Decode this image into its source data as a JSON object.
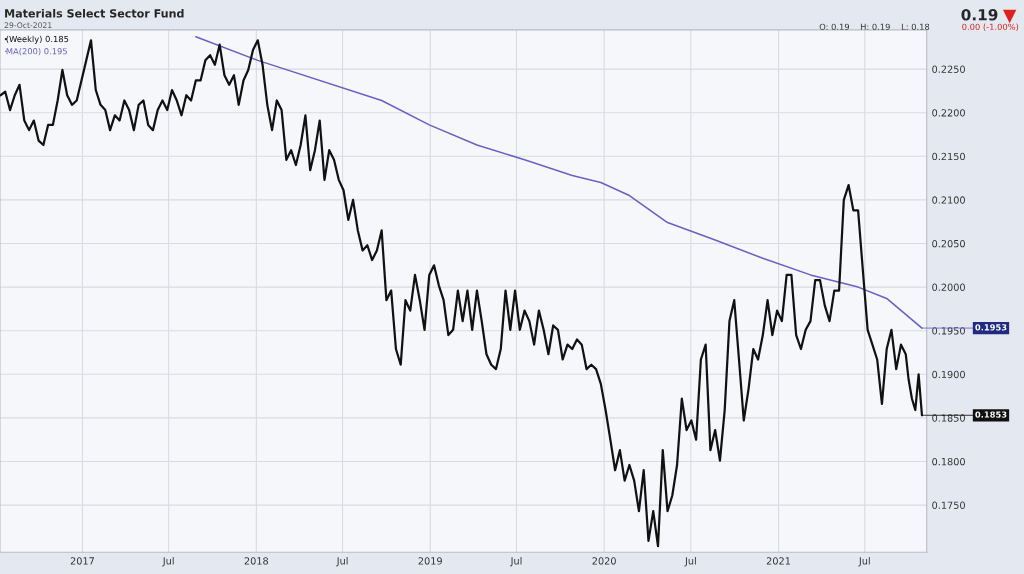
{
  "chart_data": {
    "type": "line",
    "title": "Materials Select Sector Fund",
    "annotations": [
      "29-Oct-2021",
      "0.19",
      "O: 0.19",
      "H: 0.19",
      "L: 0.18",
      "0.00 (-1.00%)",
      {
        "text": "0.1953",
        "x": "2021-10-29",
        "y": 0.1953
      },
      {
        "text": "0.1853",
        "x": "2021-10-29",
        "y": 0.1853
      }
    ],
    "series": [
      {
        "name": "(Weekly) 0.185",
        "color": "#111111",
        "x": [
          "2016-07-13",
          "2016-07-23",
          "2016-08-02",
          "2016-08-12",
          "2016-08-22",
          "2016-09-01",
          "2016-09-11",
          "2016-09-21",
          "2016-10-01",
          "2016-10-11",
          "2016-10-21",
          "2016-10-31",
          "2016-11-10",
          "2016-11-20",
          "2016-11-30",
          "2016-12-10",
          "2016-12-20",
          "2016-12-30",
          "2017-01-09",
          "2017-01-19",
          "2017-01-29",
          "2017-02-08",
          "2017-02-18",
          "2017-02-28",
          "2017-03-10",
          "2017-03-20",
          "2017-03-30",
          "2017-04-09",
          "2017-04-19",
          "2017-04-29",
          "2017-05-09",
          "2017-05-19",
          "2017-05-29",
          "2017-06-08",
          "2017-06-18",
          "2017-06-28",
          "2017-07-08",
          "2017-07-18",
          "2017-07-28",
          "2017-08-07",
          "2017-08-17",
          "2017-08-27",
          "2017-09-06",
          "2017-09-16",
          "2017-09-26",
          "2017-10-06",
          "2017-10-16",
          "2017-10-26",
          "2017-11-05",
          "2017-11-15",
          "2017-11-25",
          "2017-12-05",
          "2017-12-15",
          "2017-12-25",
          "2018-01-04",
          "2018-01-14",
          "2018-01-24",
          "2018-02-03",
          "2018-02-13",
          "2018-02-23",
          "2018-03-05",
          "2018-03-15",
          "2018-03-25",
          "2018-04-04",
          "2018-04-14",
          "2018-04-24",
          "2018-05-04",
          "2018-05-14",
          "2018-05-24",
          "2018-06-03",
          "2018-06-13",
          "2018-06-23",
          "2018-07-03",
          "2018-07-13",
          "2018-07-23",
          "2018-08-02",
          "2018-08-12",
          "2018-08-22",
          "2018-09-01",
          "2018-09-11",
          "2018-09-21",
          "2018-10-01",
          "2018-10-11",
          "2018-10-21",
          "2018-10-31",
          "2018-11-10",
          "2018-11-20",
          "2018-11-30",
          "2018-12-10",
          "2018-12-20",
          "2018-12-30",
          "2019-01-09",
          "2019-01-19",
          "2019-01-29",
          "2019-02-08",
          "2019-02-18",
          "2019-02-28",
          "2019-03-10",
          "2019-03-20",
          "2019-03-30",
          "2019-04-09",
          "2019-04-19",
          "2019-04-29",
          "2019-05-09",
          "2019-05-19",
          "2019-05-29",
          "2019-06-08",
          "2019-06-18",
          "2019-06-28",
          "2019-07-08",
          "2019-07-18",
          "2019-07-28",
          "2019-08-07",
          "2019-08-17",
          "2019-08-27",
          "2019-09-06",
          "2019-09-16",
          "2019-09-26",
          "2019-10-06",
          "2019-10-16",
          "2019-10-26",
          "2019-11-05",
          "2019-11-15",
          "2019-11-25",
          "2019-12-05",
          "2019-12-15",
          "2019-12-25",
          "2020-01-04",
          "2020-01-14",
          "2020-01-24",
          "2020-02-03",
          "2020-02-13",
          "2020-02-23",
          "2020-03-04",
          "2020-03-14",
          "2020-03-24",
          "2020-04-03",
          "2020-04-13",
          "2020-04-23",
          "2020-05-03",
          "2020-05-13",
          "2020-05-23",
          "2020-06-02",
          "2020-06-12",
          "2020-06-22",
          "2020-07-02",
          "2020-07-12",
          "2020-07-22",
          "2020-08-01",
          "2020-08-11",
          "2020-08-21",
          "2020-08-31",
          "2020-09-10",
          "2020-09-20",
          "2020-09-30",
          "2020-10-10",
          "2020-10-20",
          "2020-10-30",
          "2020-11-09",
          "2020-11-19",
          "2020-11-29",
          "2020-12-09",
          "2020-12-19",
          "2020-12-29",
          "2021-01-08",
          "2021-01-18",
          "2021-01-28",
          "2021-02-07",
          "2021-02-17",
          "2021-02-27",
          "2021-03-09",
          "2021-03-19",
          "2021-03-29",
          "2021-04-08",
          "2021-04-18",
          "2021-04-28",
          "2021-05-08",
          "2021-05-18",
          "2021-05-28",
          "2021-06-07",
          "2021-06-17",
          "2021-06-27",
          "2021-07-07",
          "2021-07-17",
          "2021-07-27",
          "2021-08-06",
          "2021-08-16",
          "2021-08-26",
          "2021-09-05",
          "2021-09-15",
          "2021-09-25",
          "2021-10-01",
          "2021-10-08",
          "2021-10-15",
          "2021-10-22",
          "2021-10-29"
        ],
        "values": [
          0.222,
          0.2224,
          0.2203,
          0.222,
          0.2232,
          0.2191,
          0.218,
          0.2191,
          0.2168,
          0.2163,
          0.2186,
          0.2186,
          0.2214,
          0.2249,
          0.222,
          0.2209,
          0.2214,
          0.2237,
          0.226,
          0.2283,
          0.2226,
          0.2209,
          0.2203,
          0.218,
          0.2197,
          0.2191,
          0.2214,
          0.2203,
          0.218,
          0.2209,
          0.2214,
          0.2186,
          0.218,
          0.2203,
          0.2214,
          0.2203,
          0.2226,
          0.2214,
          0.2197,
          0.222,
          0.2214,
          0.2237,
          0.2237,
          0.226,
          0.2266,
          0.2255,
          0.2278,
          0.2243,
          0.2232,
          0.2243,
          0.2209,
          0.2237,
          0.2249,
          0.2272,
          0.2283,
          0.2255,
          0.2209,
          0.218,
          0.2214,
          0.2203,
          0.2146,
          0.2157,
          0.214,
          0.2163,
          0.2197,
          0.2134,
          0.2157,
          0.2191,
          0.2123,
          0.2157,
          0.2146,
          0.2123,
          0.2111,
          0.2077,
          0.21,
          0.2065,
          0.2042,
          0.2048,
          0.2031,
          0.2042,
          0.2065,
          0.1985,
          0.1996,
          0.1929,
          0.1911,
          0.1985,
          0.1973,
          0.2014,
          0.1985,
          0.1951,
          0.2014,
          0.2025,
          0.2002,
          0.1985,
          0.1945,
          0.1951,
          0.1996,
          0.1961,
          0.1996,
          0.1951,
          0.1996,
          0.1961,
          0.1923,
          0.1911,
          0.1906,
          0.1929,
          0.1996,
          0.1951,
          0.1996,
          0.1951,
          0.1973,
          0.1961,
          0.1934,
          0.1973,
          0.1951,
          0.1923,
          0.1956,
          0.1951,
          0.1917,
          0.1934,
          0.1929,
          0.194,
          0.1934,
          0.1906,
          0.1911,
          0.1906,
          0.1889,
          0.1859,
          0.1825,
          0.179,
          0.1813,
          0.1778,
          0.1796,
          0.1778,
          0.1743,
          0.179,
          0.1709,
          0.1743,
          0.1703,
          0.1813,
          0.1743,
          0.1761,
          0.1796,
          0.1872,
          0.1836,
          0.1847,
          0.1825,
          0.1917,
          0.1934,
          0.1813,
          0.1836,
          0.1801,
          0.1859,
          0.1961,
          0.1985,
          0.1917,
          0.1847,
          0.1883,
          0.1929,
          0.1917,
          0.1945,
          0.1985,
          0.1945,
          0.1973,
          0.1961,
          0.2014,
          0.2014,
          0.1945,
          0.1929,
          0.1951,
          0.1961,
          0.2008,
          0.2008,
          0.1979,
          0.1961,
          0.1996,
          0.1996,
          0.21,
          0.2117,
          0.2088,
          0.2088,
          0.2019,
          0.1951,
          0.1934,
          0.1917,
          0.1866,
          0.1929,
          0.1951,
          0.1906,
          0.1934,
          0.1923,
          0.1894,
          0.1872,
          0.1859,
          0.19,
          0.1853
        ]
      },
      {
        "name": "MA(200) 0.195",
        "color": "#6a5fc9",
        "x": [
          "2017-08-27",
          "2018-01-04",
          "2018-09-21",
          "2018-12-30",
          "2019-04-09",
          "2019-07-18",
          "2019-10-26",
          "2019-12-25",
          "2020-02-23",
          "2020-05-13",
          "2020-08-21",
          "2020-11-29",
          "2021-03-09",
          "2021-06-17",
          "2021-08-16",
          "2021-10-29"
        ],
        "values": [
          0.2287,
          0.226,
          0.2214,
          0.2186,
          0.2163,
          0.2146,
          0.2128,
          0.212,
          0.2105,
          0.2074,
          0.2054,
          0.2033,
          0.2014,
          0.2,
          0.1987,
          0.1953
        ]
      }
    ],
    "xlim": [
      "2016-07-12",
      "2021-11-08"
    ],
    "xticks": [
      {
        "value": "2017-01-01",
        "label": "2017"
      },
      {
        "value": "2017-07-01",
        "label": "Jul"
      },
      {
        "value": "2018-01-01",
        "label": "2018"
      },
      {
        "value": "2018-07-01",
        "label": "Jul"
      },
      {
        "value": "2019-01-01",
        "label": "2019"
      },
      {
        "value": "2019-07-01",
        "label": "Jul"
      },
      {
        "value": "2020-01-01",
        "label": "2020"
      },
      {
        "value": "2020-07-01",
        "label": "Jul"
      },
      {
        "value": "2021-01-01",
        "label": "2021"
      },
      {
        "value": "2021-07-01",
        "label": "Jul"
      }
    ],
    "ylim": [
      0.1696,
      0.2295
    ],
    "yticks": [
      {
        "value": 0.175,
        "label": "0.1750"
      },
      {
        "value": 0.18,
        "label": "0.1800"
      },
      {
        "value": 0.185,
        "label": "0.1850"
      },
      {
        "value": 0.19,
        "label": "0.1900"
      },
      {
        "value": 0.195,
        "label": "0.1950"
      },
      {
        "value": 0.2,
        "label": "0.2000"
      },
      {
        "value": 0.205,
        "label": "0.2050"
      },
      {
        "value": 0.21,
        "label": "0.2100"
      },
      {
        "value": 0.215,
        "label": "0.2150"
      },
      {
        "value": 0.22,
        "label": "0.2200"
      },
      {
        "value": 0.225,
        "label": "0.2250"
      }
    ],
    "grid": true,
    "legend": "top left",
    "line_style": "solid",
    "marker": "none"
  }
}
